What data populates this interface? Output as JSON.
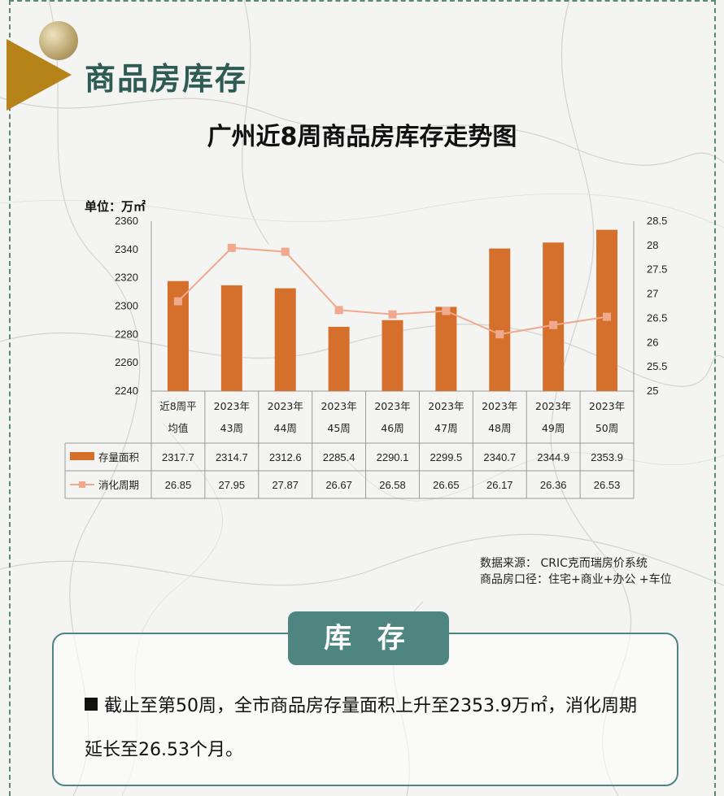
{
  "page_title": "商品房库存",
  "section_tab": "库 存",
  "chart_data": {
    "type": "bar",
    "title": "广州近8周商品房库存走势图",
    "unit": "单位：万㎡",
    "categories": [
      [
        "近8周平",
        "均值"
      ],
      [
        "2023年",
        "43周"
      ],
      [
        "2023年",
        "44周"
      ],
      [
        "2023年",
        "45周"
      ],
      [
        "2023年",
        "46周"
      ],
      [
        "2023年",
        "47周"
      ],
      [
        "2023年",
        "48周"
      ],
      [
        "2023年",
        "49周"
      ],
      [
        "2023年",
        "50周"
      ]
    ],
    "series": [
      {
        "name": "存量面积",
        "type": "bar",
        "axis": "left",
        "color": "#d4702b",
        "values": [
          2317.7,
          2314.7,
          2312.6,
          2285.4,
          2290.1,
          2299.5,
          2340.7,
          2344.9,
          2353.9
        ],
        "labels": [
          "2317.7",
          "2314.7",
          "2312.6",
          "2285.4",
          "2290.1",
          "2299.5",
          "2340.7",
          "2344.9",
          "2353.9"
        ]
      },
      {
        "name": "消化周期",
        "type": "line",
        "axis": "right",
        "color": "#f0a98d",
        "values": [
          26.85,
          27.95,
          27.87,
          26.67,
          26.58,
          26.65,
          26.17,
          26.36,
          26.53
        ],
        "labels": [
          "26.85",
          "27.95",
          "27.87",
          "26.67",
          "26.58",
          "26.65",
          "26.17",
          "26.36",
          "26.53"
        ]
      }
    ],
    "ylim": [
      2240,
      2360
    ],
    "yticks": [
      "2360",
      "2340",
      "2320",
      "2300",
      "2280",
      "2260",
      "2240"
    ],
    "y2lim": [
      25,
      28.5
    ],
    "y2ticks": [
      "28.5",
      "28",
      "27.5",
      "27",
      "26.5",
      "26",
      "25.5",
      "25"
    ],
    "legend": "data-table"
  },
  "source": {
    "line1": "数据来源：  CRIC克而瑞房价系统",
    "line2": "商品房口径：住宅+商业+办公 +车位"
  },
  "summary": {
    "text": "截止至第50周，全市商品房存量面积上升至2353.9万㎡，消化周期延长至26.53个月。"
  }
}
